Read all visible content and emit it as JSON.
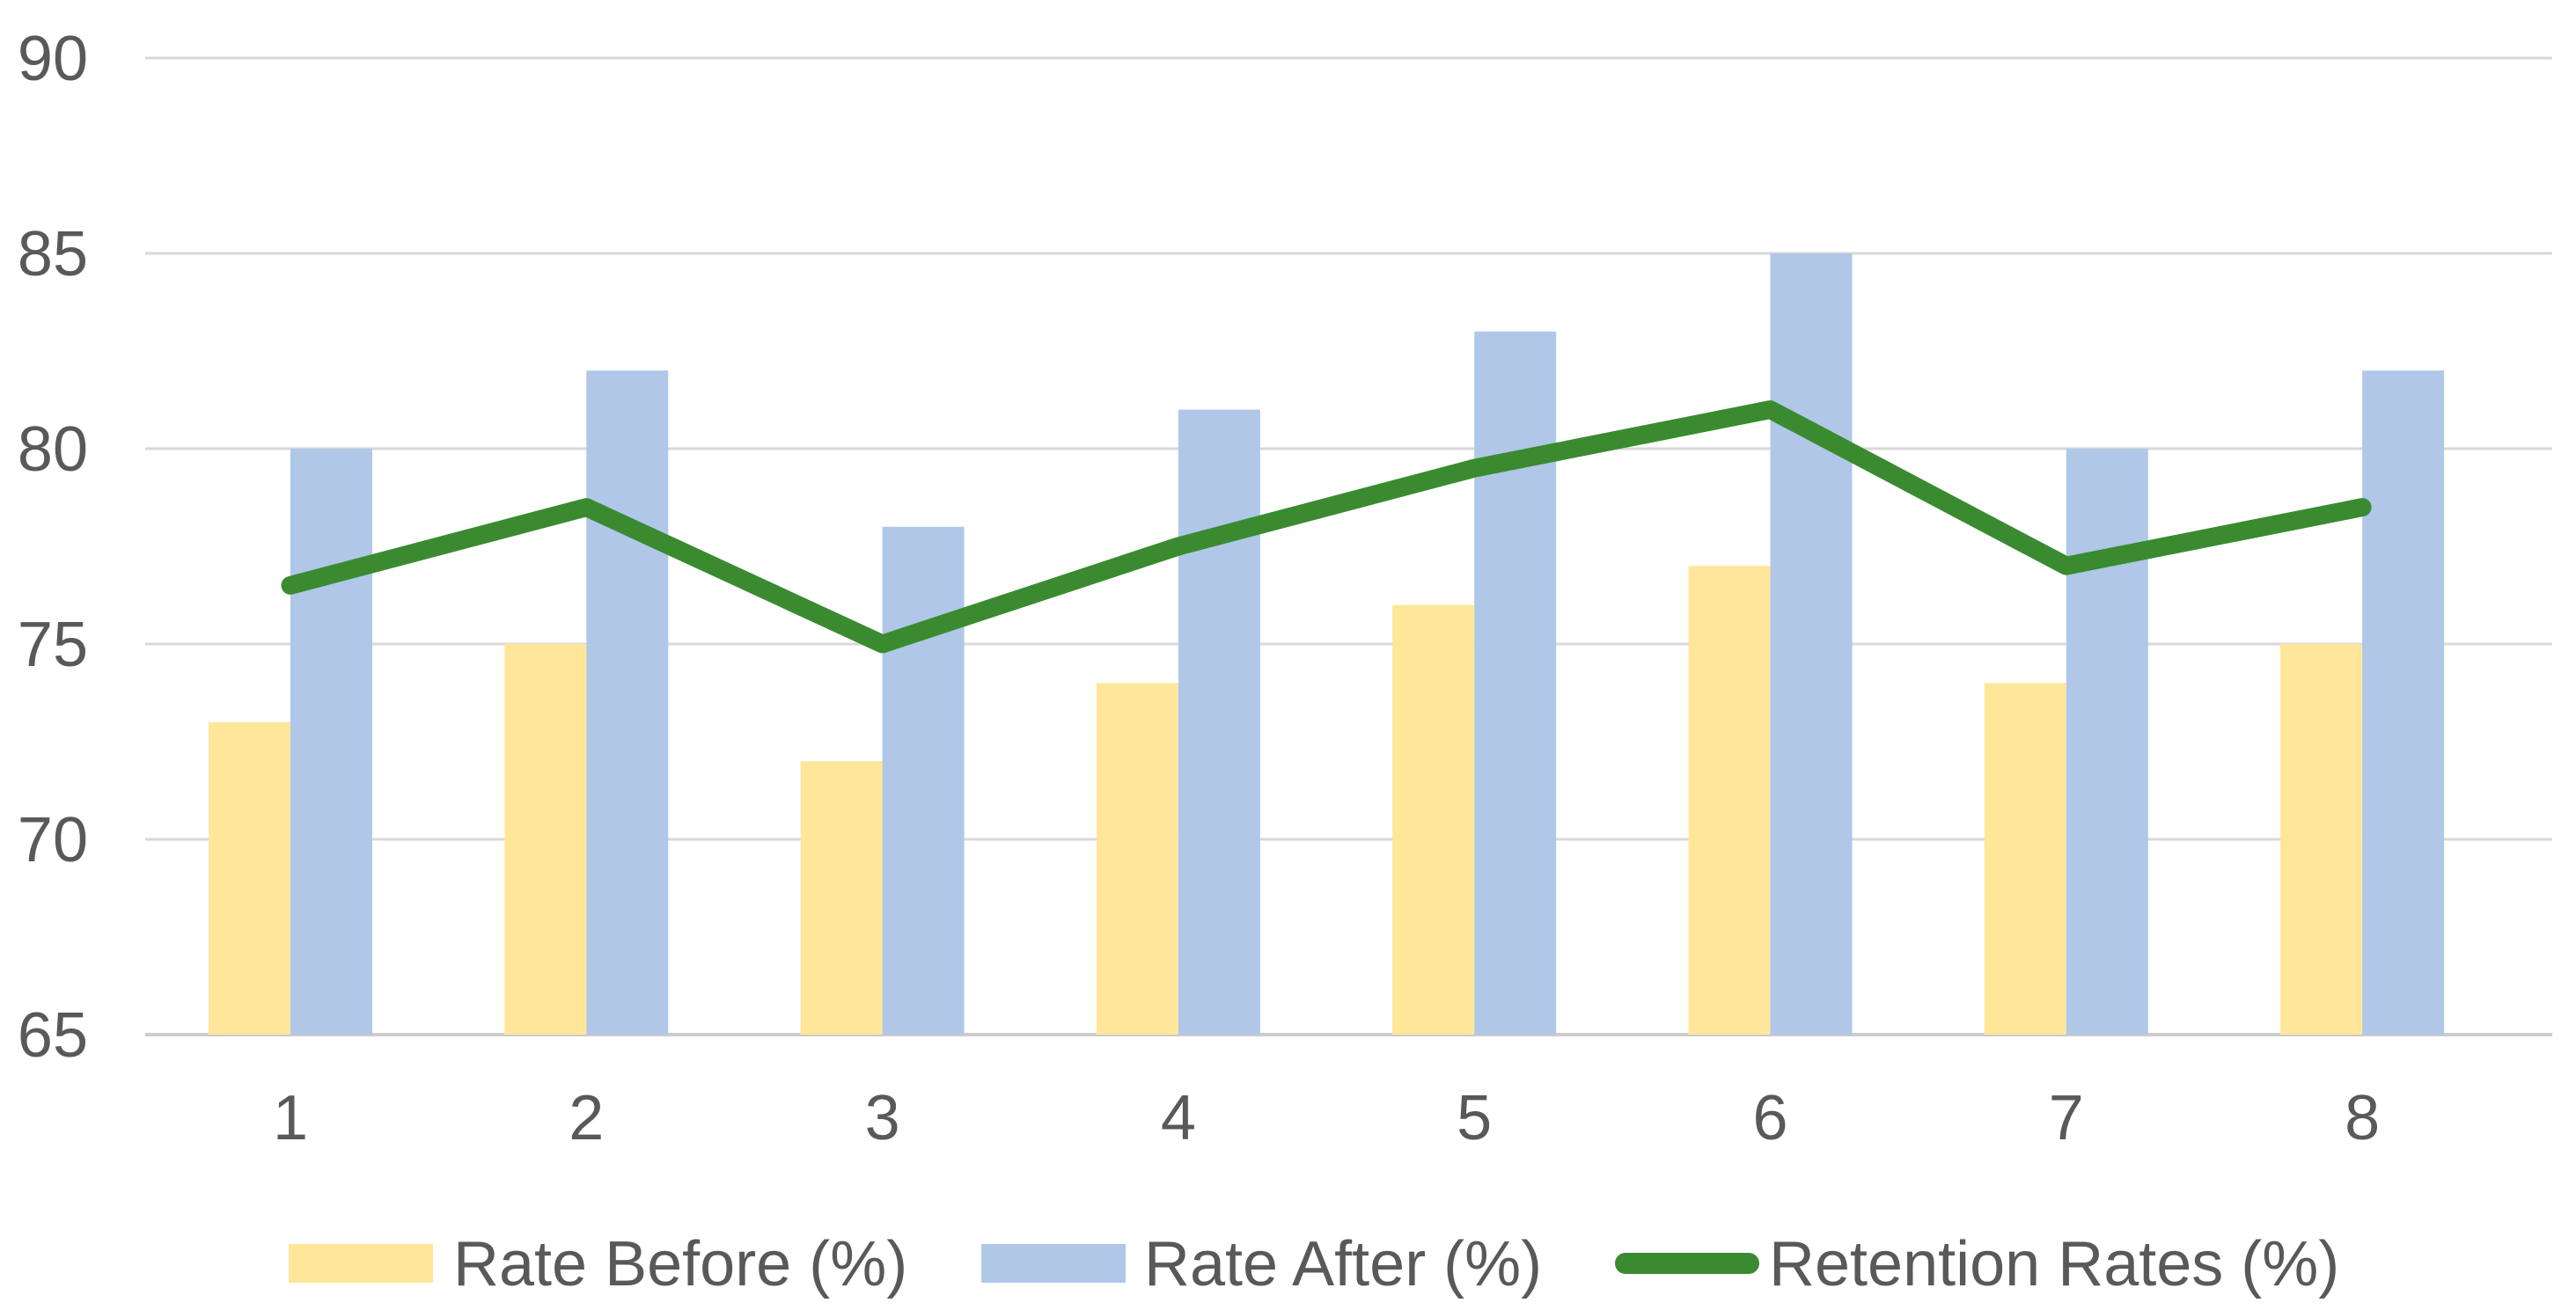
{
  "chart_data": {
    "type": "combo-bar-line",
    "categories": [
      "1",
      "2",
      "3",
      "4",
      "5",
      "6",
      "7",
      "8"
    ],
    "series": [
      {
        "name": "Rate Before (%)",
        "type": "bar",
        "color": "#FFE699",
        "values": [
          73,
          75,
          72,
          74,
          76,
          77,
          74,
          75
        ]
      },
      {
        "name": "Rate After (%)",
        "type": "bar",
        "color": "#B0C7E8",
        "values": [
          80,
          82,
          78,
          81,
          83,
          85,
          80,
          82
        ]
      },
      {
        "name": "Retention Rates (%)",
        "type": "line",
        "color": "#3A8B30",
        "values": [
          76.5,
          78.5,
          75,
          77.5,
          79.5,
          81,
          77,
          78.5
        ]
      }
    ],
    "y_axis": {
      "min": 65,
      "max": 90,
      "tick_interval": 5,
      "tick_labels": [
        "90",
        "85",
        "80",
        "75",
        "70",
        "65"
      ]
    },
    "x_axis": {
      "tick_labels": [
        "1",
        "2",
        "3",
        "4",
        "5",
        "6",
        "7",
        "8"
      ]
    },
    "grid": true,
    "legend_position": "bottom",
    "style": {
      "gridline_color": "#D9D9D9",
      "baseline_color": "#CCCCCC",
      "label_color": "#595959"
    }
  }
}
